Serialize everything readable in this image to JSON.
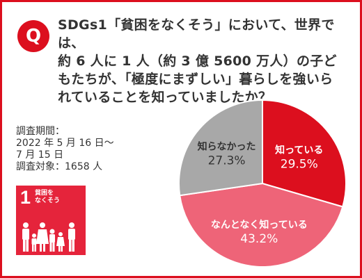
{
  "question": {
    "badge": "Q",
    "text": "SDGs1「貧困をなくそう」において、世界では、\n約 6 人に 1 人（約 3 億 5600 万人）の子ど\nもたちが、「極度にまずしい」暮らしを強いら\nれていることを知っていましたか？"
  },
  "survey": {
    "text": "調査期間：\n2022 年 5 月 16 日〜\n7 月 15 日\n調査対象：1658 人"
  },
  "sdg": {
    "number": "1",
    "title": "貧困を\nなくそう"
  },
  "colors": {
    "accent": "#dc0f1e",
    "sdg_red": "#e5243b",
    "slice_know": "#dc0f1e",
    "slice_somewhat": "#ee6478",
    "slice_unknown": "#a8a8a8"
  },
  "chart_data": {
    "type": "pie",
    "start": "12 o'clock",
    "direction": "clockwise",
    "slices": [
      {
        "label": "知っている",
        "value": 29.5,
        "display": "29.5%",
        "color": "#dc0f1e",
        "text_color": "#ffffff"
      },
      {
        "label": "なんとなく知っている",
        "value": 43.2,
        "display": "43.2%",
        "color": "#ee6478",
        "text_color": "#ffffff"
      },
      {
        "label": "知らなかった",
        "value": 27.3,
        "display": "27.3%",
        "color": "#a8a8a8",
        "text_color": "#333333"
      }
    ]
  }
}
